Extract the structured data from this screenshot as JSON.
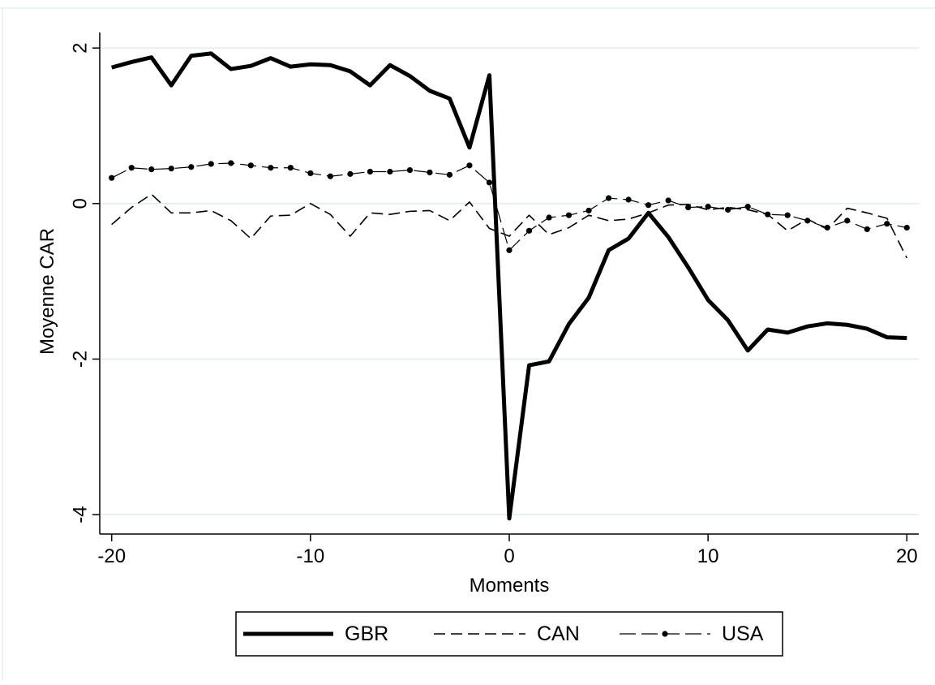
{
  "chart_data": {
    "type": "line",
    "title": "",
    "xlabel": "Moments",
    "ylabel": "Moyenne CAR",
    "xlim": [
      -20.6,
      20.6
    ],
    "ylim": [
      -4.25,
      2.2
    ],
    "xticks": [
      -20,
      -10,
      0,
      10,
      20
    ],
    "xtick_labels": [
      "-20",
      "-10",
      "0",
      "10",
      "20"
    ],
    "yticks": [
      -4,
      -2,
      0,
      2
    ],
    "ytick_labels": [
      "-4",
      "-2",
      "0",
      "2"
    ],
    "grid": "horizontal",
    "legend_position": "bottom",
    "x": [
      -20,
      -19,
      -18,
      -17,
      -16,
      -15,
      -14,
      -13,
      -12,
      -11,
      -10,
      -9,
      -8,
      -7,
      -6,
      -5,
      -4,
      -3,
      -2,
      -1,
      0,
      1,
      2,
      3,
      4,
      5,
      6,
      7,
      8,
      9,
      10,
      11,
      12,
      13,
      14,
      15,
      16,
      17,
      18,
      19,
      20
    ],
    "series": [
      {
        "name": "GBR",
        "color": "#000000",
        "style": "solid-thick",
        "values": [
          1.75,
          1.82,
          1.88,
          1.52,
          1.9,
          1.93,
          1.73,
          1.77,
          1.87,
          1.76,
          1.79,
          1.78,
          1.7,
          1.52,
          1.78,
          1.64,
          1.45,
          1.35,
          0.72,
          1.65,
          -4.05,
          -2.08,
          -2.03,
          -1.55,
          -1.21,
          -0.6,
          -0.45,
          -0.12,
          -0.43,
          -0.82,
          -1.24,
          -1.5,
          -1.89,
          -1.62,
          -1.66,
          -1.58,
          -1.54,
          -1.56,
          -1.61,
          -1.72,
          -1.73
        ]
      },
      {
        "name": "CAN",
        "color": "#000000",
        "style": "dashed",
        "values": [
          -0.27,
          -0.05,
          0.12,
          -0.12,
          -0.12,
          -0.09,
          -0.22,
          -0.45,
          -0.16,
          -0.15,
          0.0,
          -0.14,
          -0.42,
          -0.12,
          -0.14,
          -0.1,
          -0.09,
          -0.22,
          0.02,
          -0.32,
          -0.42,
          -0.15,
          -0.4,
          -0.31,
          -0.15,
          -0.22,
          -0.2,
          -0.12,
          -0.02,
          -0.01,
          -0.08,
          -0.05,
          -0.08,
          -0.14,
          -0.35,
          -0.2,
          -0.33,
          -0.06,
          -0.12,
          -0.19,
          -0.7
        ]
      },
      {
        "name": "USA",
        "color": "#000000",
        "style": "longdash-dot",
        "values": [
          0.33,
          0.46,
          0.44,
          0.45,
          0.47,
          0.51,
          0.52,
          0.49,
          0.46,
          0.46,
          0.39,
          0.35,
          0.38,
          0.41,
          0.41,
          0.43,
          0.4,
          0.37,
          0.49,
          0.27,
          -0.6,
          -0.35,
          -0.18,
          -0.15,
          -0.09,
          0.07,
          0.05,
          -0.02,
          0.04,
          -0.05,
          -0.04,
          -0.08,
          -0.04,
          -0.14,
          -0.15,
          -0.22,
          -0.31,
          -0.22,
          -0.33,
          -0.26,
          -0.31
        ]
      }
    ]
  }
}
